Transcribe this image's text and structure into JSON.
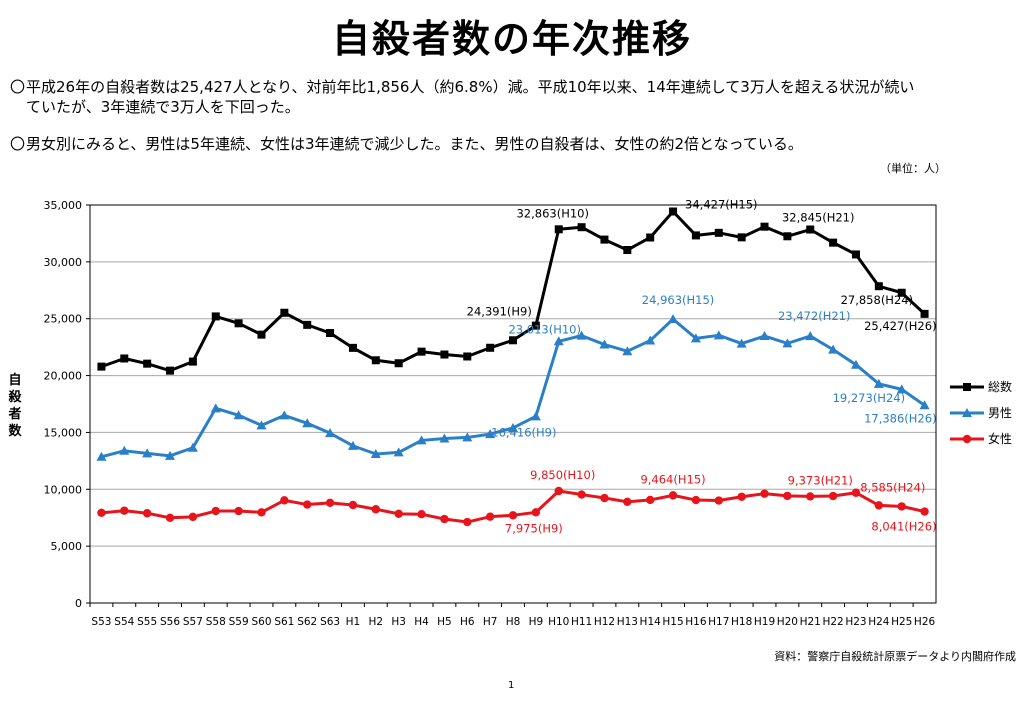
{
  "page": {
    "title": "自殺者数の年次推移",
    "note1_bullet": "〇",
    "note1_line1": "平成26年の自殺者数は25,427人となり、対前年比1,856人（約6.8%）減。平成10年以来、14年連続して3万人を超える状況が続い",
    "note1_line2": "ていたが、3年連続で3万人を下回った。",
    "note2_bullet": "〇",
    "note2": "男女別にみると、男性は5年連続、女性は3年連続で減少した。また、男性の自殺者は、女性の約2倍となっている。",
    "unit": "（単位：人）",
    "source": "資料：警察庁自殺統計原票データより内閣府作成",
    "page_number": "1"
  },
  "chart_data": {
    "type": "line",
    "title": "",
    "xlabel": "",
    "ylabel": "自殺者数",
    "ylim": [
      0,
      35000
    ],
    "yticks": [
      0,
      5000,
      10000,
      15000,
      20000,
      25000,
      30000,
      35000
    ],
    "ytick_labels": [
      "0",
      "5,000",
      "10,000",
      "15,000",
      "20,000",
      "25,000",
      "30,000",
      "35,000"
    ],
    "grid": "horizontal",
    "legend_position": "right",
    "categories": [
      "S53",
      "S54",
      "S55",
      "S56",
      "S57",
      "S58",
      "S59",
      "S60",
      "S61",
      "S62",
      "S63",
      "H1",
      "H2",
      "H3",
      "H4",
      "H5",
      "H6",
      "H7",
      "H8",
      "H9",
      "H10",
      "H11",
      "H12",
      "H13",
      "H14",
      "H15",
      "H16",
      "H17",
      "H18",
      "H19",
      "H20",
      "H21",
      "H22",
      "H23",
      "H24",
      "H25",
      "H26"
    ],
    "series": [
      {
        "name": "総数",
        "color": "#000000",
        "marker": "square",
        "values": [
          20788,
          21503,
          21048,
          20434,
          21228,
          25202,
          24596,
          23599,
          25524,
          24460,
          23742,
          22436,
          21346,
          21084,
          22104,
          21851,
          21679,
          22445,
          23104,
          24391,
          32863,
          33048,
          31957,
          31042,
          32143,
          34427,
          32325,
          32552,
          32155,
          33093,
          32249,
          32845,
          31690,
          30651,
          27858,
          27283,
          25427
        ]
      },
      {
        "name": "男性",
        "color": "#2a7fc9",
        "marker": "triangle",
        "values": [
          12859,
          13386,
          13155,
          12942,
          13654,
          17116,
          16508,
          15624,
          16497,
          15802,
          14934,
          13818,
          13102,
          13242,
          14296,
          14468,
          14560,
          14853,
          15393,
          16416,
          23013,
          23512,
          22727,
          22144,
          23080,
          24963,
          23272,
          23540,
          22813,
          23478,
          22831,
          23472,
          22283,
          20955,
          19273,
          18787,
          17386
        ]
      },
      {
        "name": "女性",
        "color": "#e8141c",
        "marker": "circle",
        "values": [
          7929,
          8117,
          7893,
          7492,
          7574,
          8086,
          8088,
          7975,
          9027,
          8658,
          8808,
          8618,
          8244,
          7842,
          7808,
          7383,
          7119,
          7592,
          7711,
          7975,
          9850,
          9536,
          9230,
          8898,
          9063,
          9464,
          9053,
          9012,
          9342,
          9615,
          9418,
          9373,
          9407,
          9696,
          8585,
          8496,
          8041
        ]
      }
    ],
    "annotations": [
      {
        "series": "総数",
        "category": "H9",
        "text": "24,391(H9)"
      },
      {
        "series": "総数",
        "category": "H10",
        "text": "32,863(H10)"
      },
      {
        "series": "総数",
        "category": "H15",
        "text": "34,427(H15)"
      },
      {
        "series": "総数",
        "category": "H21",
        "text": "32,845(H21)"
      },
      {
        "series": "総数",
        "category": "H24",
        "text": "27,858(H24)"
      },
      {
        "series": "総数",
        "category": "H26",
        "text": "25,427(H26)"
      },
      {
        "series": "男性",
        "category": "H9",
        "text": "16,416(H9)"
      },
      {
        "series": "男性",
        "category": "H10",
        "text": "23,013(H10)"
      },
      {
        "series": "男性",
        "category": "H15",
        "text": "24,963(H15)"
      },
      {
        "series": "男性",
        "category": "H21",
        "text": "23,472(H21)"
      },
      {
        "series": "男性",
        "category": "H24",
        "text": "19,273(H24)"
      },
      {
        "series": "男性",
        "category": "H26",
        "text": "17,386(H26)"
      },
      {
        "series": "女性",
        "category": "H9",
        "text": "7,975(H9)"
      },
      {
        "series": "女性",
        "category": "H10",
        "text": "9,850(H10)"
      },
      {
        "series": "女性",
        "category": "H15",
        "text": "9,464(H15)"
      },
      {
        "series": "女性",
        "category": "H21",
        "text": "9,373(H21)"
      },
      {
        "series": "女性",
        "category": "H24",
        "text": "8,585(H24)"
      },
      {
        "series": "女性",
        "category": "H26",
        "text": "8,041(H26)"
      }
    ]
  }
}
